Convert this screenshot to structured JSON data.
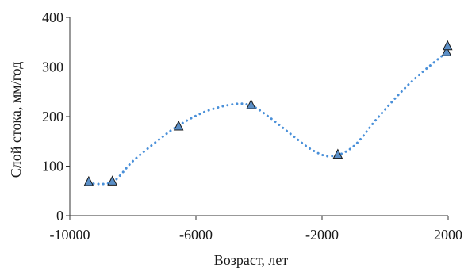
{
  "chart_data": {
    "type": "scatter",
    "title": "",
    "xlabel": "Возраст, лет",
    "ylabel": "Слой стока, мм/год",
    "xlim": [
      -10000,
      2000
    ],
    "ylim": [
      0,
      400
    ],
    "xticks": [
      -10000,
      -6000,
      -2000,
      2000
    ],
    "yticks": [
      0,
      100,
      200,
      300,
      400
    ],
    "xtick_labels": [
      "-10000",
      "-6000",
      "-2000",
      "2000"
    ],
    "ytick_labels": [
      "0",
      "100",
      "200",
      "300",
      "400"
    ],
    "grid": false,
    "legend": false,
    "series": [
      {
        "marker": "triangle",
        "color": "#5b8fc7",
        "points": [
          {
            "x": -9400,
            "y": 68
          },
          {
            "x": -8650,
            "y": 69
          },
          {
            "x": -6550,
            "y": 180
          },
          {
            "x": -4250,
            "y": 223
          },
          {
            "x": -1500,
            "y": 123
          },
          {
            "x": 1950,
            "y": 330
          },
          {
            "x": 1980,
            "y": 342
          }
        ]
      }
    ],
    "trendline": {
      "style": "dotted",
      "color": "#4a90d9",
      "points": [
        {
          "x": -9400,
          "y": 65
        },
        {
          "x": -8650,
          "y": 68
        },
        {
          "x": -8000,
          "y": 110
        },
        {
          "x": -7200,
          "y": 152
        },
        {
          "x": -6550,
          "y": 182
        },
        {
          "x": -5700,
          "y": 210
        },
        {
          "x": -4800,
          "y": 225
        },
        {
          "x": -4250,
          "y": 222
        },
        {
          "x": -3700,
          "y": 200
        },
        {
          "x": -3000,
          "y": 165
        },
        {
          "x": -2300,
          "y": 132
        },
        {
          "x": -1700,
          "y": 120
        },
        {
          "x": -1000,
          "y": 140
        },
        {
          "x": -200,
          "y": 200
        },
        {
          "x": 800,
          "y": 268
        },
        {
          "x": 1950,
          "y": 330
        }
      ]
    }
  }
}
